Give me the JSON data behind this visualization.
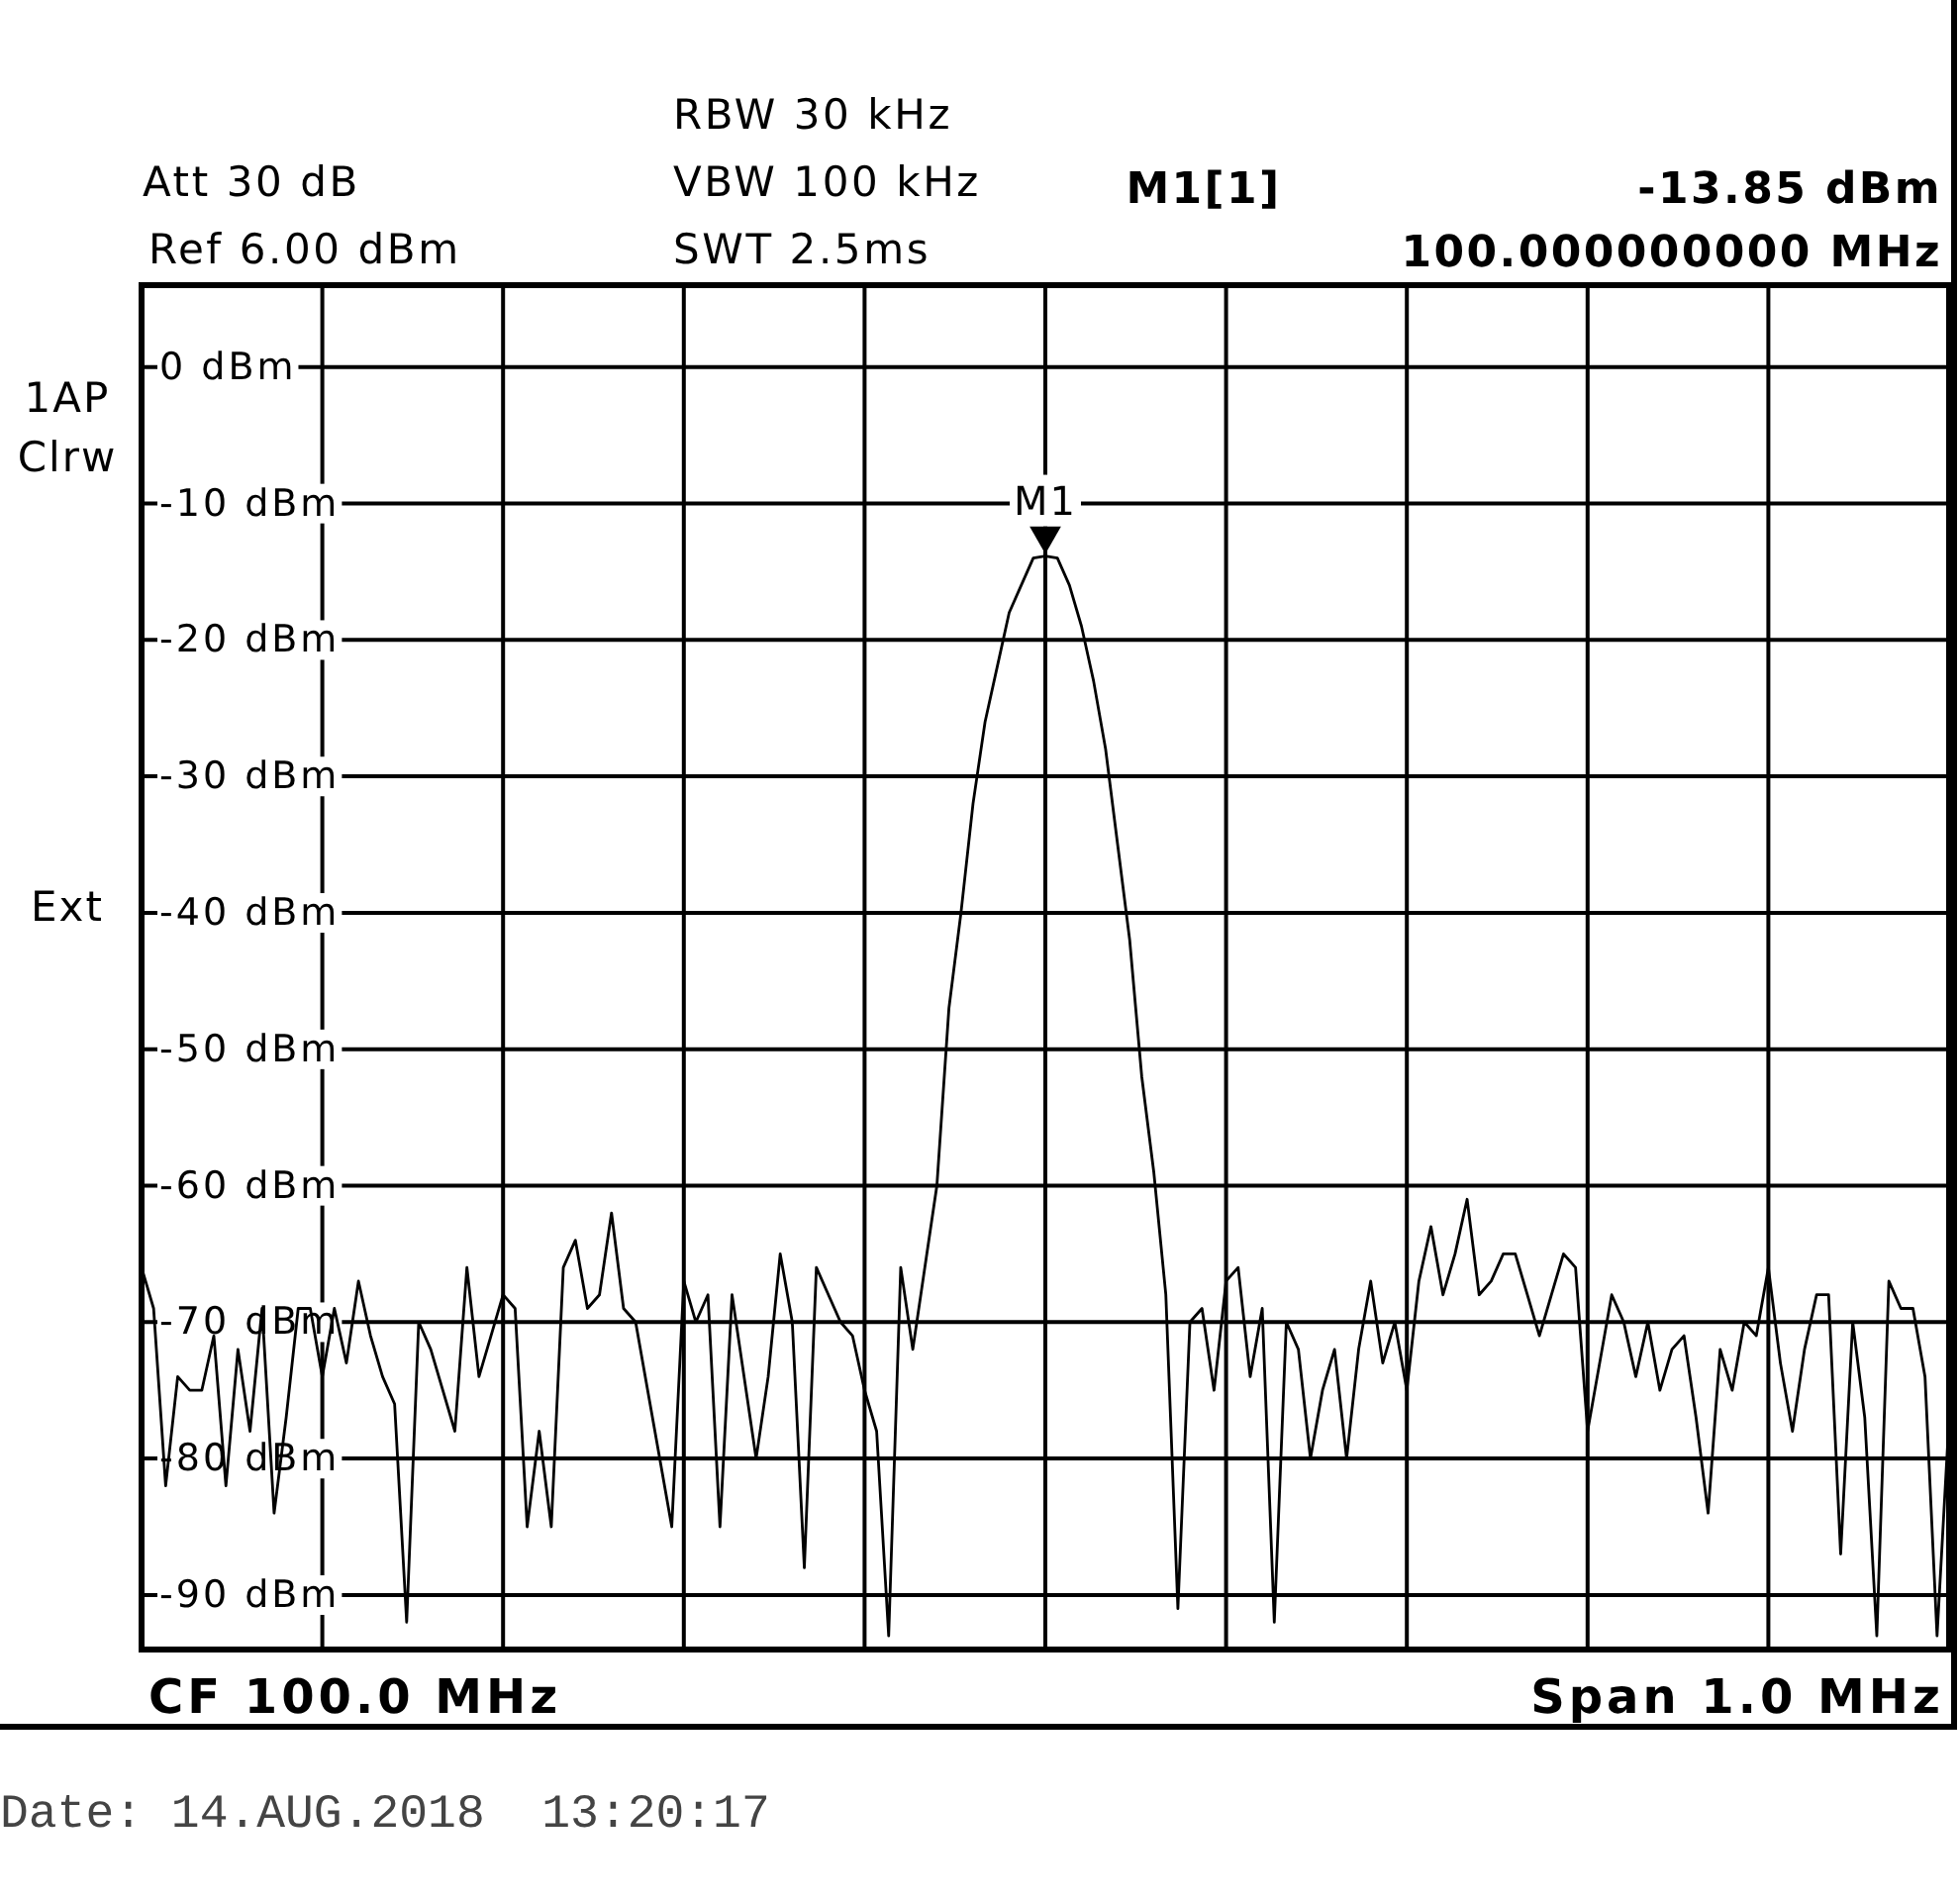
{
  "chart_data": {
    "type": "line",
    "categories": [
      null,
      null,
      null,
      null,
      null,
      null,
      null,
      null,
      null,
      null,
      null,
      null,
      null,
      null,
      null,
      null,
      null,
      null,
      null,
      null,
      null,
      null,
      null,
      null,
      null,
      null,
      null,
      null,
      null,
      null,
      null,
      null,
      null,
      null,
      null,
      null,
      null,
      null,
      null,
      null,
      null,
      null,
      null,
      null,
      null,
      null,
      null,
      null,
      null,
      null,
      null,
      null,
      null,
      null,
      null,
      null,
      null,
      null,
      null,
      null,
      null,
      null,
      null,
      null,
      null,
      null,
      null,
      null,
      null,
      null,
      null,
      null,
      null,
      null,
      null,
      null,
      null,
      null,
      null,
      null,
      null,
      null,
      null,
      null,
      null,
      null,
      null,
      null,
      null,
      null,
      null,
      null,
      null,
      null,
      null,
      null,
      null,
      null,
      null,
      null,
      null,
      null,
      null,
      null,
      null,
      null,
      null,
      null,
      null,
      null,
      null,
      null,
      null,
      null,
      null,
      null,
      null,
      null,
      null,
      null,
      null,
      null,
      null,
      null,
      null,
      null,
      null,
      null,
      null,
      null,
      null,
      null,
      null,
      null,
      null,
      null,
      null,
      null,
      null,
      null,
      null,
      null,
      null,
      null,
      null,
      null,
      null,
      null,
      null,
      null,
      null
    ],
    "values": [
      -66,
      -69,
      -82,
      -74,
      -75,
      -75,
      -71,
      -82,
      -72,
      -78,
      -69,
      -84,
      -77,
      -69,
      -69,
      -74,
      -69,
      -73,
      -67,
      -71,
      -74,
      -76,
      -92,
      -70,
      -72,
      -75,
      -78,
      -66,
      -74,
      -71,
      -68,
      -69,
      -85,
      -78,
      -85,
      -66,
      -64,
      -69,
      -68,
      -62,
      -69,
      -70,
      -75,
      -80,
      -85,
      -67,
      -70,
      -68,
      -85,
      -68,
      -74,
      -80,
      -74,
      -65,
      -70,
      -88,
      -66,
      -68,
      -70,
      -71,
      -75,
      -78,
      -93,
      -66,
      -72,
      -66,
      -60,
      -47,
      -40,
      -32,
      -26,
      -22,
      -18,
      -16,
      -14,
      -13.85,
      -14,
      -16,
      -19,
      -23,
      -28,
      -35,
      -42,
      -52,
      -59,
      -68,
      -91,
      -70,
      -69,
      -75,
      -67,
      -66,
      -74,
      -69,
      -92,
      -70,
      -72,
      -80,
      -75,
      -72,
      -80,
      -72,
      -67,
      -73,
      -70,
      -75,
      -67,
      -63,
      -68,
      -65,
      -61,
      -68,
      -67,
      -65,
      -65,
      -68,
      -71,
      -68,
      -65,
      -66,
      -78,
      -73,
      -68,
      -70,
      -74,
      -70,
      -75,
      -72,
      -71,
      -77,
      -84,
      -72,
      -75,
      -70,
      -71,
      -66,
      -73,
      -78,
      -72,
      -68,
      -68,
      -87,
      -70,
      -77,
      -93,
      -67,
      -69,
      -69,
      -74,
      -93,
      -77
    ],
    "color": "#000000",
    "ylim": [
      -94,
      6
    ],
    "yticks": [
      {
        "value": 0,
        "label": "0 dBm"
      },
      {
        "value": -10,
        "label": "-10 dBm"
      },
      {
        "value": -20,
        "label": "-20 dBm"
      },
      {
        "value": -30,
        "label": "-30 dBm"
      },
      {
        "value": -40,
        "label": "-40 dBm"
      },
      {
        "value": -50,
        "label": "-50 dBm"
      },
      {
        "value": -60,
        "label": "-60 dBm"
      },
      {
        "value": -70,
        "label": "-70 dBm"
      },
      {
        "value": -80,
        "label": "-80 dBm"
      },
      {
        "value": -90,
        "label": "-90 dBm"
      }
    ],
    "grid": true,
    "tick_labels": "y",
    "annotations": [
      "Att 30 dB",
      "Ref 6.00 dBm",
      "RBW 30 kHz",
      "VBW 100 kHz",
      "SWT 2.5ms",
      "M1[1]",
      "-13.85 dBm",
      "100.000000000 MHz",
      "1AP",
      "Clrw",
      "Ext",
      "CF 100.0 MHz",
      "Span 1.0 MHz",
      "Date: 14.AUG.2018  13:20:17",
      {
        "text": "M1",
        "y": -13.85
      }
    ]
  }
}
